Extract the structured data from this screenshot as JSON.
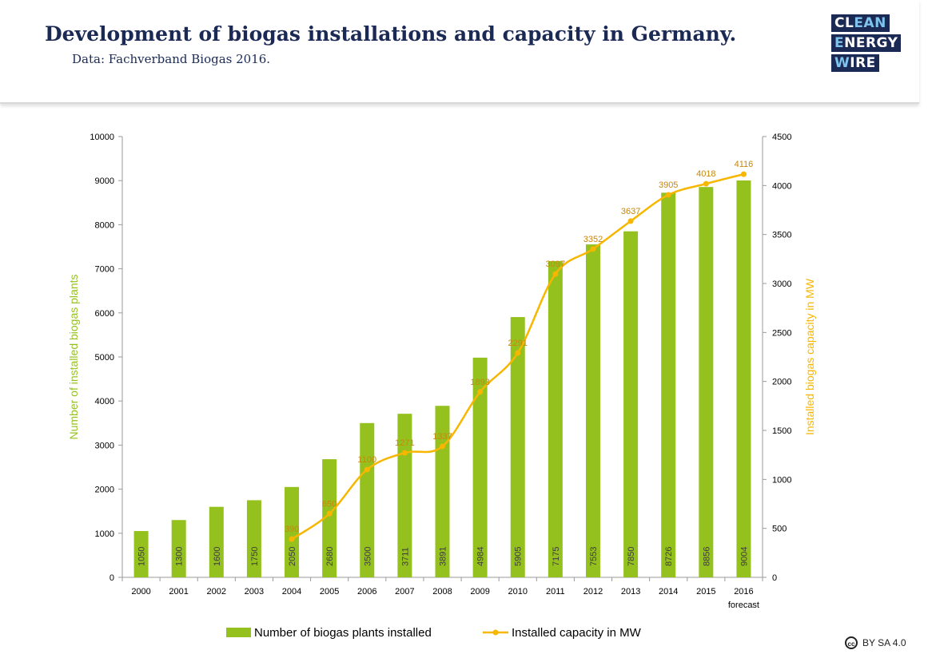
{
  "header": {
    "title": "Development of biogas installations and capacity in Germany.",
    "subtitle": "Data: Fachverband Biogas 2016.",
    "logo": {
      "l1a": "CL",
      "l1b": "EAN",
      "l2a": "E",
      "l2b": "NERGY",
      "l3a": "W",
      "l3b": "IRE"
    }
  },
  "license": {
    "icon": "creative-commons-icon",
    "icon_text": "cc",
    "text": "BY SA 4.0"
  },
  "colors": {
    "bars": "#95c11f",
    "line": "#f7b600",
    "line_label": "#c8860a",
    "title": "#1b2a55"
  },
  "chart_data": {
    "type": "bar",
    "categories": [
      "2000",
      "2001",
      "2002",
      "2003",
      "2004",
      "2005",
      "2006",
      "2007",
      "2008",
      "2009",
      "2010",
      "2011",
      "2012",
      "2013",
      "2014",
      "2015",
      "2016"
    ],
    "category_sublabels": {
      "2016": "forecast"
    },
    "series": [
      {
        "name": "Number of biogas plants installed",
        "type": "bar",
        "axis": "left",
        "values": [
          1050,
          1300,
          1600,
          1750,
          2050,
          2680,
          3500,
          3711,
          3891,
          4984,
          5905,
          7175,
          7553,
          7850,
          8726,
          8856,
          9004
        ]
      },
      {
        "name": "Installed capacity in MW",
        "type": "line",
        "axis": "right",
        "values": [
          null,
          null,
          null,
          null,
          390,
          650,
          1100,
          1271,
          1337,
          1893,
          2291,
          3097,
          3352,
          3637,
          3905,
          4018,
          4116
        ]
      }
    ],
    "ylabel_left": "Number of installed biogas plants",
    "ylabel_right": "Installed biogas capacity in MW",
    "ylim_left": [
      0,
      10000
    ],
    "yticks_left": [
      0,
      1000,
      2000,
      3000,
      4000,
      5000,
      6000,
      7000,
      8000,
      9000,
      10000
    ],
    "ylim_right": [
      0,
      4500
    ],
    "yticks_right": [
      0,
      500,
      1000,
      1500,
      2000,
      2500,
      3000,
      3500,
      4000,
      4500
    ],
    "grid": false,
    "legend_position": "bottom"
  }
}
